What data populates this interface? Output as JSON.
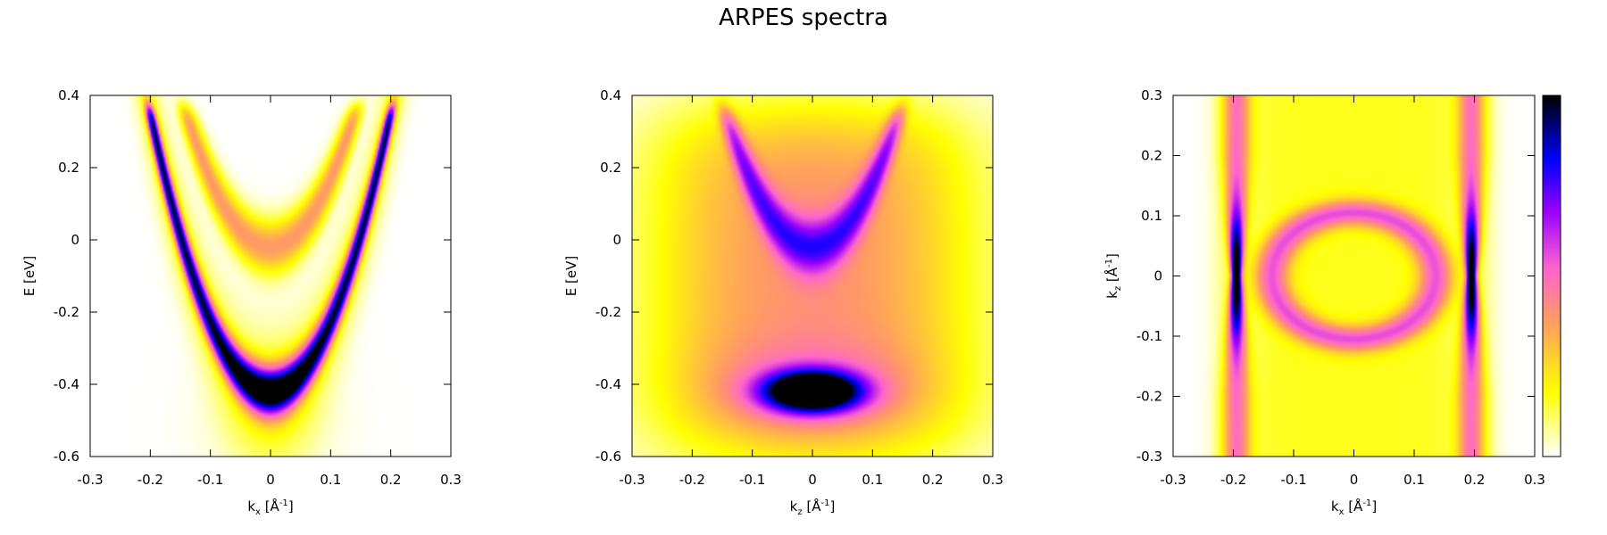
{
  "figure_title": "ARPES spectra",
  "colormap": {
    "name": "gnuplot-pm3d",
    "stops": [
      "#ffffff",
      "#ffff00",
      "#ff9966",
      "#ff66cc",
      "#9900ff",
      "#0000ff",
      "#000000"
    ],
    "tick_labels": []
  },
  "chart_data": [
    {
      "type": "heatmap",
      "title": "",
      "xlabel": {
        "base": "k",
        "sub": "x",
        "rest": " [Å",
        "sup": "-1",
        "end": "]"
      },
      "ylabel": {
        "text": "E [eV]"
      },
      "xlim": [
        -0.3,
        0.3
      ],
      "ylim": [
        -0.6,
        0.4
      ],
      "xticks": [
        "-0.3",
        "-0.2",
        "-0.1",
        "0",
        "0.1",
        "0.2",
        "0.3"
      ],
      "yticks": [
        "0.4",
        "0.2",
        "0",
        "-0.2",
        "-0.4",
        "-0.6"
      ],
      "features": [
        {
          "shape": "parabola",
          "vertex": [
            0,
            -0.42
          ],
          "reaches": [
            [
              -0.2,
              0.35
            ],
            [
              0.2,
              0.35
            ]
          ],
          "intensity": 1.0
        },
        {
          "shape": "parabola",
          "vertex": [
            0,
            -0.02
          ],
          "reaches": [
            [
              -0.14,
              0.35
            ],
            [
              0.14,
              0.35
            ]
          ],
          "intensity": 0.38
        }
      ]
    },
    {
      "type": "heatmap",
      "title": "",
      "xlabel": {
        "base": "k",
        "sub": "z",
        "rest": " [Å",
        "sup": "-1",
        "end": "]"
      },
      "ylabel": {
        "text": "E [eV]"
      },
      "xlim": [
        -0.3,
        0.3
      ],
      "ylim": [
        -0.6,
        0.4
      ],
      "xticks": [
        "-0.3",
        "-0.2",
        "-0.1",
        "0",
        "0.1",
        "0.2",
        "0.3"
      ],
      "yticks": [
        "0.4",
        "0.2",
        "0",
        "-0.2",
        "-0.4",
        "-0.6"
      ],
      "features": [
        {
          "shape": "blob",
          "center": [
            0,
            -0.42
          ],
          "intensity": 1.0
        },
        {
          "shape": "parabola",
          "vertex": [
            0,
            -0.02
          ],
          "reaches": [
            [
              -0.14,
              0.33
            ],
            [
              0.14,
              0.33
            ]
          ],
          "intensity": 0.4
        }
      ]
    },
    {
      "type": "heatmap",
      "title": "",
      "xlabel": {
        "base": "k",
        "sub": "x",
        "rest": " [Å",
        "sup": "-1",
        "end": "]"
      },
      "ylabel": {
        "base": "k",
        "sub": "z",
        "rest": " [Å",
        "sup": "-1",
        "end": "]"
      },
      "xlim": [
        -0.3,
        0.3
      ],
      "ylim": [
        -0.3,
        0.3
      ],
      "xticks": [
        "-0.3",
        "-0.2",
        "-0.1",
        "0",
        "0.1",
        "0.2",
        "0.3"
      ],
      "yticks": [
        "0.3",
        "0.2",
        "0.1",
        "0",
        "-0.1",
        "-0.2",
        "-0.3"
      ],
      "colorbar": true,
      "features": [
        {
          "shape": "vertical-line",
          "x": -0.195,
          "intensity": 1.0
        },
        {
          "shape": "vertical-line",
          "x": 0.195,
          "intensity": 1.0
        },
        {
          "shape": "ring",
          "center": [
            0,
            0
          ],
          "radii": [
            0.13,
            0.1
          ],
          "intensity": 0.4
        }
      ]
    }
  ]
}
